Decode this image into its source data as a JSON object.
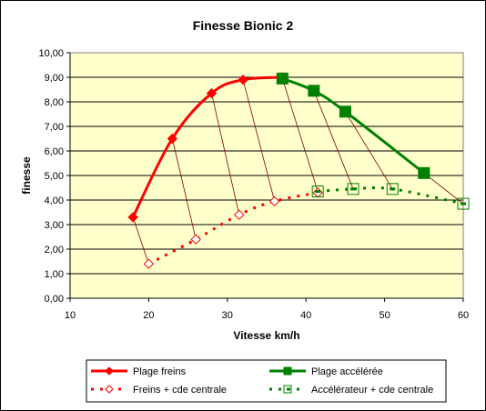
{
  "chart_data": {
    "type": "line",
    "title": "Finesse Bionic 2",
    "xlabel": "Vitesse km/h",
    "ylabel": "finesse",
    "xlim": [
      10,
      60
    ],
    "ylim": [
      0,
      10
    ],
    "x_ticks": [
      "10",
      "20",
      "30",
      "40",
      "50",
      "60"
    ],
    "y_ticks": [
      "0,00",
      "1,00",
      "2,00",
      "3,00",
      "4,00",
      "5,00",
      "6,00",
      "7,00",
      "8,00",
      "9,00",
      "10,00"
    ],
    "grid": "horizontal",
    "plot_background": "#ffffcc",
    "legend_position": "bottom",
    "series": [
      {
        "name": "Plage freins",
        "color": "#ff0000",
        "style": "solid",
        "marker": "filled-diamond",
        "x": [
          18,
          23,
          28,
          32,
          37
        ],
        "y": [
          3.3,
          6.5,
          8.35,
          8.9,
          9.0
        ]
      },
      {
        "name": "Plage accélérée",
        "color": "#008000",
        "style": "solid",
        "marker": "filled-square",
        "x": [
          37,
          41,
          45,
          55
        ],
        "y": [
          8.95,
          8.45,
          7.6,
          5.1
        ]
      },
      {
        "name": "Freins + cde centrale",
        "color": "#ff0000",
        "style": "dotted",
        "marker": "open-diamond",
        "x": [
          20,
          26,
          31.5,
          36,
          41.5
        ],
        "y": [
          1.4,
          2.4,
          3.4,
          3.95,
          4.3
        ]
      },
      {
        "name": "Accélérateur + cde centrale",
        "color": "#008000",
        "style": "dotted",
        "marker": "open-square",
        "x": [
          41.5,
          46,
          51,
          60
        ],
        "y": [
          4.35,
          4.45,
          4.45,
          3.85
        ]
      }
    ],
    "connectors": [
      {
        "from": [
          18,
          3.3
        ],
        "to": [
          20,
          1.4
        ]
      },
      {
        "from": [
          23,
          6.5
        ],
        "to": [
          26,
          2.4
        ]
      },
      {
        "from": [
          28,
          8.35
        ],
        "to": [
          31.5,
          3.4
        ]
      },
      {
        "from": [
          32,
          8.9
        ],
        "to": [
          36,
          3.95
        ]
      },
      {
        "from": [
          37,
          8.95
        ],
        "to": [
          41.5,
          4.35
        ]
      },
      {
        "from": [
          41,
          8.45
        ],
        "to": [
          46,
          4.45
        ]
      },
      {
        "from": [
          45,
          7.6
        ],
        "to": [
          51,
          4.45
        ]
      },
      {
        "from": [
          55,
          5.1
        ],
        "to": [
          60,
          3.85
        ]
      }
    ],
    "connector_color": "#800000"
  }
}
